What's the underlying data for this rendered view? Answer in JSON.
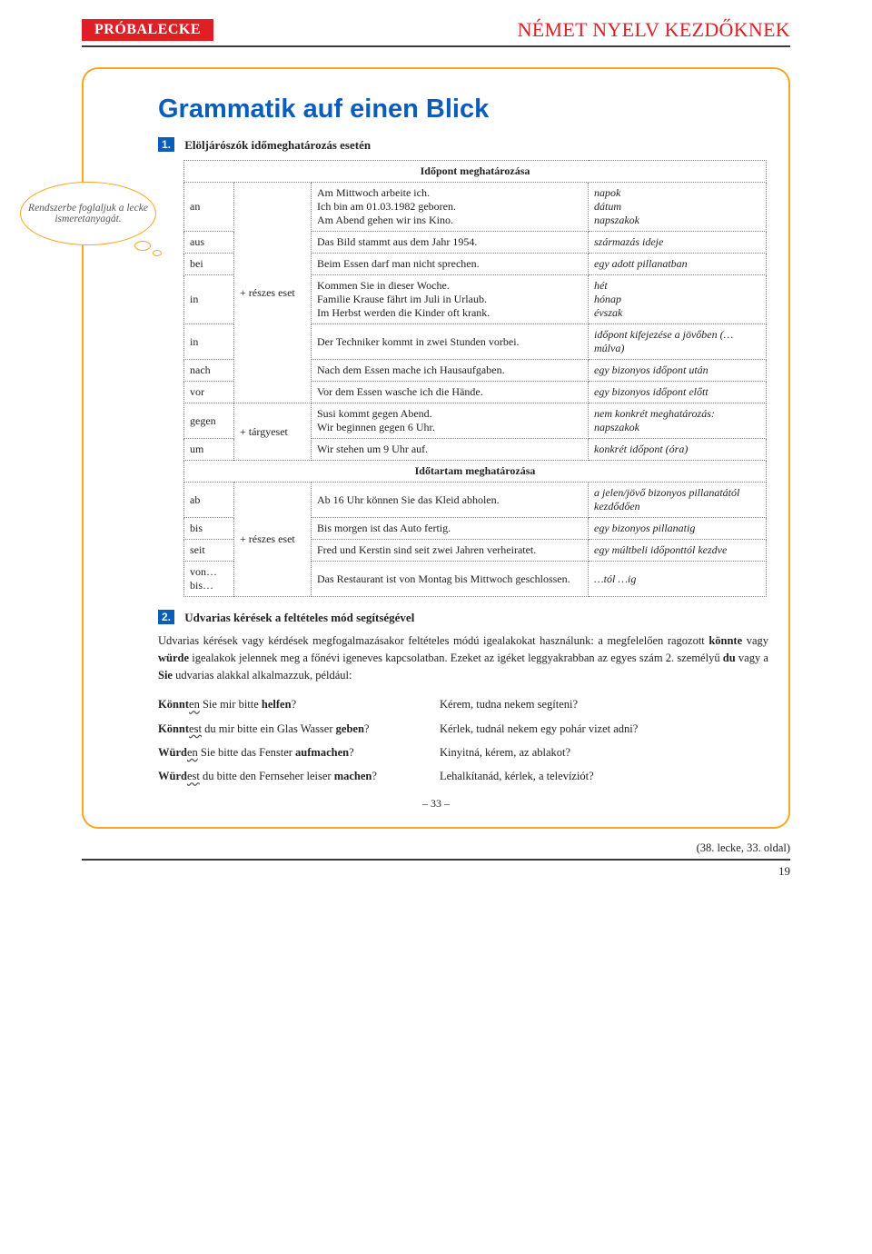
{
  "header": {
    "left": "PRÓBALECKE",
    "right": "NÉMET NYELV KEZDŐKNEK"
  },
  "bubble": "Rendszerbe foglaljuk a lecke ismeretanyagát.",
  "title": "Grammatik auf einen Blick",
  "section1": {
    "num": "1.",
    "heading": "Elöljárószók időmeghatározás esetén",
    "subhead1": "Időpont meghatározása",
    "subhead2": "Időtartam meghatározása",
    "case_reszes": "+ részes eset",
    "case_targy": "+ tárgyeset",
    "rows": {
      "an": {
        "p": "an",
        "ex": "Am Mittwoch arbeite ich.\nIch bin am 01.03.1982 geboren.\nAm Abend gehen wir ins Kino.",
        "m": "napok\ndátum\nnapszakok"
      },
      "aus": {
        "p": "aus",
        "ex": "Das Bild stammt aus dem Jahr 1954.",
        "m": "származás ideje"
      },
      "bei": {
        "p": "bei",
        "ex": "Beim Essen darf man nicht sprechen.",
        "m": "egy adott pillanatban"
      },
      "in1": {
        "p": "in",
        "ex": "Kommen Sie in dieser Woche.\nFamilie Krause fährt im Juli in Urlaub.\nIm Herbst werden die Kinder oft krank.",
        "m": "hét\nhónap\névszak"
      },
      "in2": {
        "p": "in",
        "ex": "Der Techniker kommt in zwei Stunden vorbei.",
        "m": "időpont kifejezése a jövőben (… múlva)"
      },
      "nach": {
        "p": "nach",
        "ex": "Nach dem Essen mache ich Hausaufgaben.",
        "m": "egy bizonyos időpont után"
      },
      "vor": {
        "p": "vor",
        "ex": "Vor dem Essen wasche ich die Hände.",
        "m": "egy bizonyos időpont előtt"
      },
      "gegen": {
        "p": "gegen",
        "ex": "Susi kommt gegen Abend.\nWir beginnen gegen 6 Uhr.",
        "m": "nem konkrét meghatározás:\nnapszakok"
      },
      "um": {
        "p": "um",
        "ex": "Wir stehen um 9 Uhr auf.",
        "m": "konkrét időpont (óra)"
      },
      "ab": {
        "p": "ab",
        "ex": "Ab 16 Uhr können Sie das Kleid abholen.",
        "m": "a jelen/jövő bizonyos pillanatától kezdődően"
      },
      "bis": {
        "p": "bis",
        "ex": "Bis morgen ist das Auto fertig.",
        "m": "egy bizonyos pillanatig"
      },
      "seit": {
        "p": "seit",
        "ex": "Fred und Kerstin sind seit zwei Jahren verheiratet.",
        "m": "egy múltbeli időponttól kezdve"
      },
      "vonbis": {
        "p": "von…\nbis…",
        "ex": "Das Restaurant ist von Montag bis Mittwoch geschlossen.",
        "m": "…tól …ig"
      }
    }
  },
  "section2": {
    "num": "2.",
    "heading": "Udvarias kérések a feltételes mód segítségével",
    "para": "Udvarias kérések vagy kérdések megfogalmazásakor feltételes módú igealakokat használunk: a megfelelően ragozott könnte vagy würde igealakok jelennek meg a főnévi igeneves kapcsolatban. Ezeket az igéket leggyakrabban az egyes szám 2. személyű du vagy a Sie udvarias alakkal alkalmazzuk, például:",
    "ex": [
      {
        "q_pre": "Könnt",
        "q_u": "en",
        "q_mid": " Sie mir bitte ",
        "q_b": "helfen",
        "q_post": "?",
        "a": "Kérem, tudna nekem segíteni?"
      },
      {
        "q_pre": "Könnt",
        "q_u": "est",
        "q_mid": " du mir bitte ein Glas Wasser ",
        "q_b": "geben",
        "q_post": "?",
        "a": "Kérlek, tudnál nekem egy pohár vizet adni?"
      },
      {
        "q_pre": "Würd",
        "q_u": "en",
        "q_mid": " Sie bitte das Fenster ",
        "q_b": "aufmachen",
        "q_post": "?",
        "a": "Kinyitná, kérem, az ablakot?"
      },
      {
        "q_pre": "Würd",
        "q_u": "est",
        "q_mid": " du bitte den Fernseher leiser ",
        "q_b": "machen",
        "q_post": "?",
        "a": "Lehalkítanád, kérlek, a televíziót?"
      }
    ]
  },
  "innerPage": "– 33 –",
  "footerRef": "(38. lecke, 33. oldal)",
  "footerPage": "19"
}
